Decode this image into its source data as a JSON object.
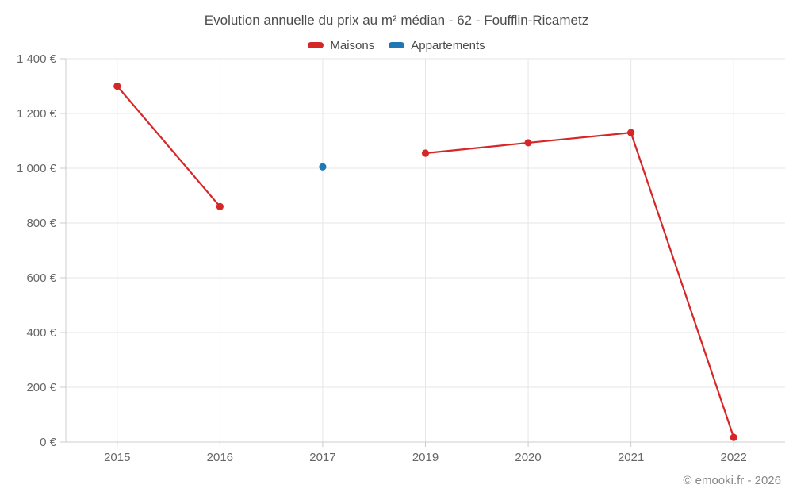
{
  "title": "Evolution annuelle du prix au m² médian - 62 - Foufflin-Ricametz",
  "footer": "© emooki.fr - 2026",
  "colors": {
    "maisons": "#d62728",
    "appartements": "#1f77b4",
    "grid": "#e6e6e6",
    "axis": "#cccccc",
    "tick_text": "#666666",
    "title_text": "#4d4d4d",
    "legend_text": "#4a4a4a",
    "footer_text": "#888888",
    "background": "#ffffff"
  },
  "chart_data": {
    "type": "line",
    "title": "Evolution annuelle du prix au m² médian - 62 - Foufflin-Ricametz",
    "categories": [
      "2015",
      "2016",
      "2017",
      "2019",
      "2020",
      "2021",
      "2022"
    ],
    "series": [
      {
        "name": "Maisons",
        "color": "#d62728",
        "values": [
          1300,
          860,
          null,
          1055,
          1093,
          1130,
          17
        ]
      },
      {
        "name": "Appartements",
        "color": "#1f77b4",
        "values": [
          null,
          null,
          1005,
          null,
          null,
          null,
          null
        ]
      }
    ],
    "xlabel": "",
    "ylabel": "",
    "y_format": "{value} €",
    "ylim": [
      0,
      1400
    ],
    "ytick_step": 200,
    "ytick_labels": [
      "0 €",
      "200 €",
      "400 €",
      "600 €",
      "800 €",
      "1 000 €",
      "1 200 €",
      "1 400 €"
    ],
    "grid": true,
    "legend_position": "top",
    "marker": "circle",
    "notes": "Maisons line has a gap at 2017; year 2018 absent from axis; Appartements has a single point in 2017"
  }
}
